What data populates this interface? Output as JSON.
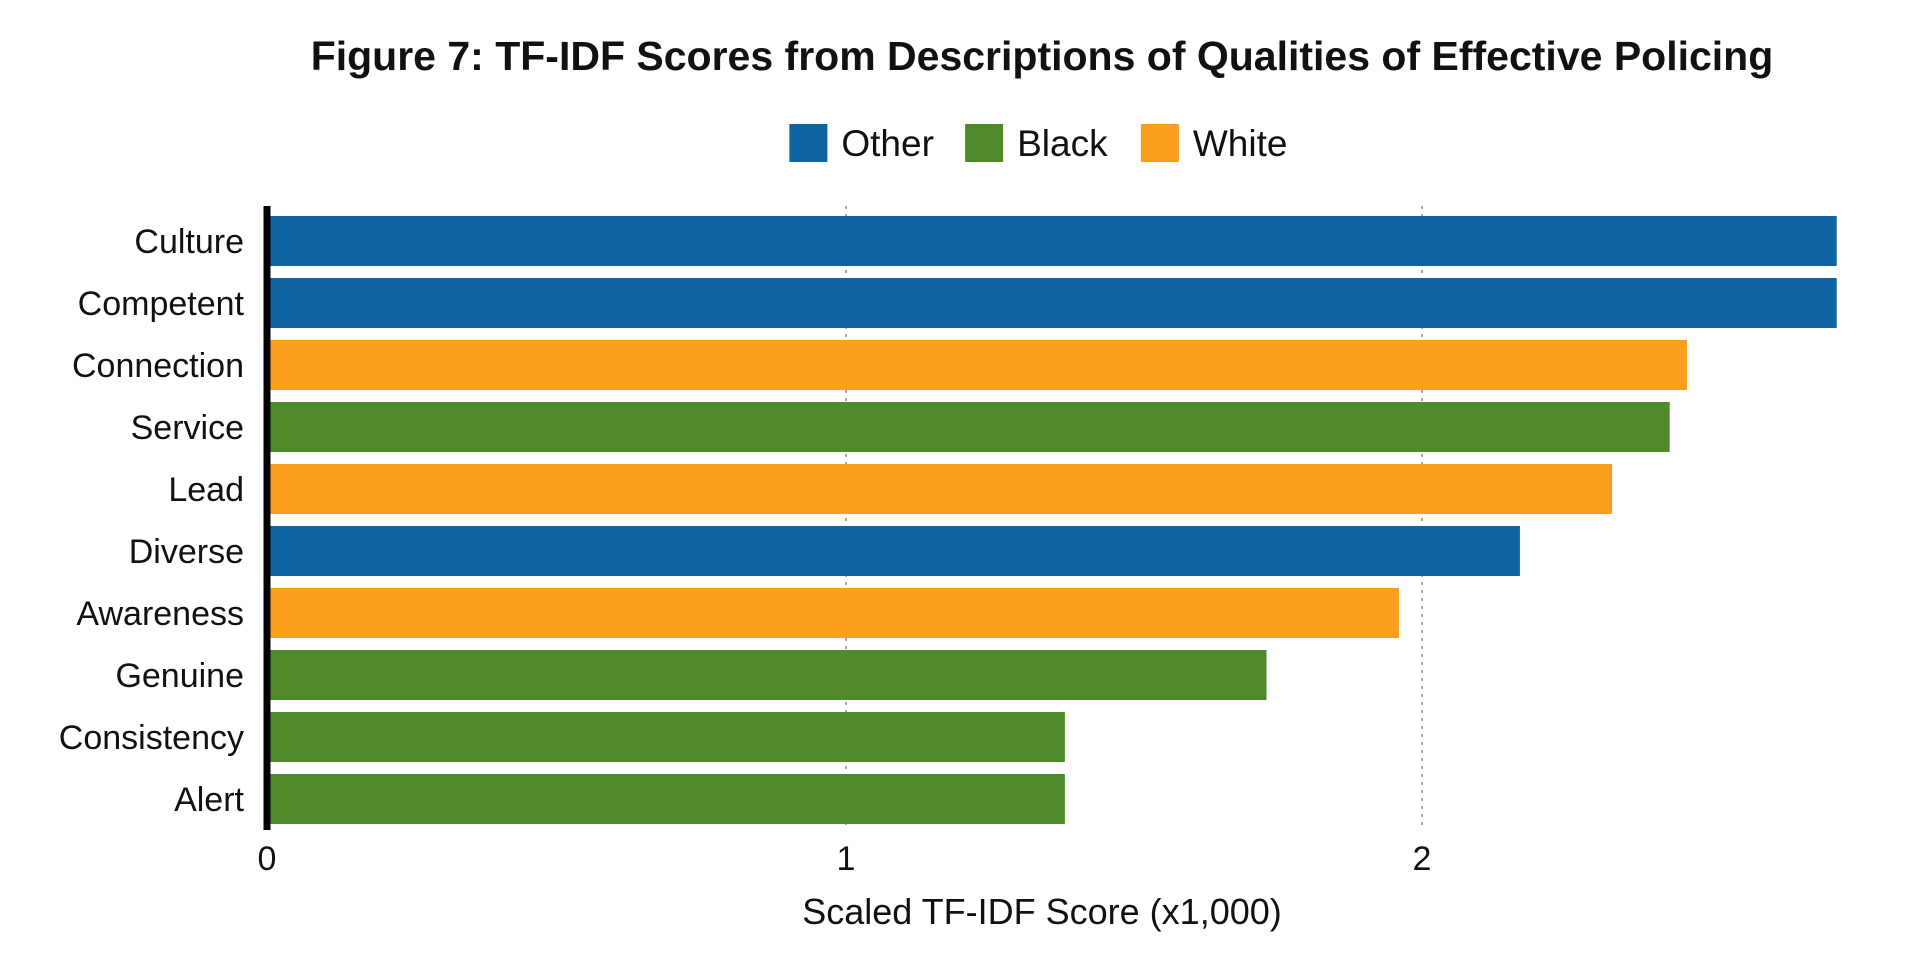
{
  "chart_data": {
    "type": "bar",
    "orientation": "horizontal",
    "title": "Figure 7: TF-IDF Scores from Descriptions of Qualities of Effective Policing",
    "xlabel": "Scaled TF-IDF Score (x1,000)",
    "ylabel": "",
    "xlim": [
      0,
      2.75
    ],
    "xticks": [
      0,
      1,
      2
    ],
    "grid": "vertical-dotted",
    "legend_position": "top-center",
    "legend": [
      {
        "name": "Other",
        "color": "#0d64a0"
      },
      {
        "name": "Black",
        "color": "#4e8a29"
      },
      {
        "name": "White",
        "color": "#fb9d1d"
      }
    ],
    "categories": [
      "Culture",
      "Competent",
      "Connection",
      "Service",
      "Lead",
      "Diverse",
      "Awareness",
      "Genuine",
      "Consistency",
      "Alert"
    ],
    "values": [
      2.72,
      2.72,
      2.46,
      2.43,
      2.33,
      2.17,
      1.96,
      1.73,
      1.38,
      1.38
    ],
    "groups": [
      "Other",
      "Other",
      "White",
      "Black",
      "White",
      "Other",
      "White",
      "Black",
      "Black",
      "Black"
    ]
  }
}
